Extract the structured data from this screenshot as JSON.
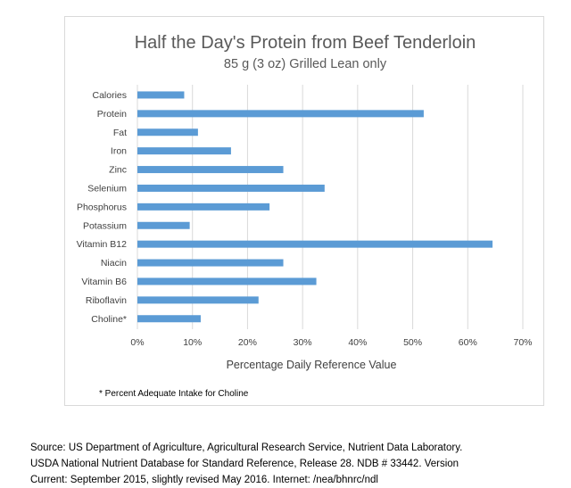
{
  "chart_data": {
    "type": "bar",
    "orientation": "horizontal",
    "title": "Half the Day's Protein from Beef Tenderloin",
    "subtitle": "85 g (3 oz) Grilled Lean only",
    "xlabel": "Percentage Daily Reference Value",
    "ylabel": "",
    "xlim": [
      0,
      70
    ],
    "x_ticks": [
      "0%",
      "10%",
      "20%",
      "30%",
      "40%",
      "50%",
      "60%",
      "70%"
    ],
    "grid": true,
    "legend": "none",
    "bar_color": "#5b9bd5",
    "categories": [
      "Calories",
      "Protein",
      "Fat",
      "Iron",
      "Zinc",
      "Selenium",
      "Phosphorus",
      "Potassium",
      "Vitamin B12",
      "Niacin",
      "Vitamin B6",
      "Riboflavin",
      "Choline*"
    ],
    "values": [
      8.5,
      52,
      11,
      17,
      26.5,
      34,
      24,
      9.5,
      64.5,
      26.5,
      32.5,
      22,
      11.5
    ],
    "footnote": "* Percent Adequate Intake  for Choline"
  },
  "source": {
    "line1": "Source:  US Department of Agriculture, Agricultural Research Service, Nutrient Data Laboratory.",
    "line2": "USDA National Nutrient Database for Standard Reference, Release 28. NDB # 33442. Version",
    "line3": "Current:  September 2015, slightly revised May 2016.  Internet:  /nea/bhnrc/ndl"
  }
}
